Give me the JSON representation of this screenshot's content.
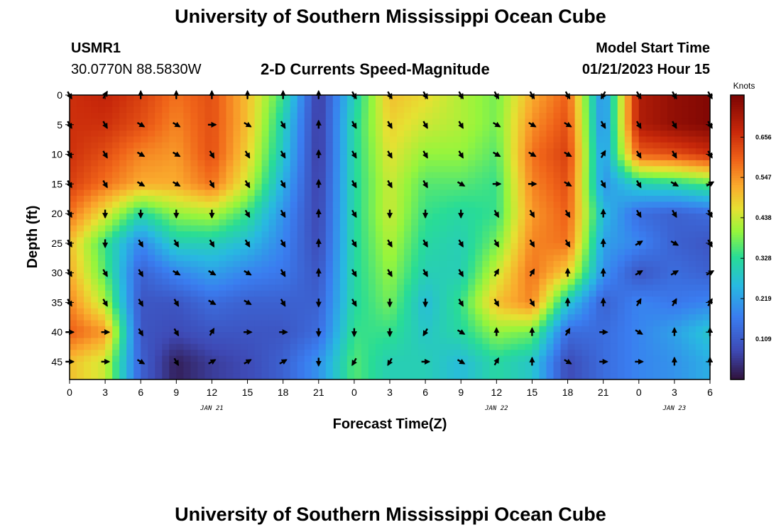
{
  "header": {
    "title": "University of Southern Mississippi Ocean Cube",
    "station": "USMR1",
    "coords": "30.0770N  88.5830W",
    "subtitle": "2-D Currents Speed-Magnitude",
    "model_start_label": "Model Start Time",
    "model_start_value": "01/21/2023 Hour 15"
  },
  "footer": {
    "title": "University of Southern Mississippi Ocean Cube"
  },
  "chart_data": {
    "type": "heatmap",
    "xlabel": "Forecast Time(Z)",
    "ylabel": "Depth (ft)",
    "x_tick_labels": [
      "0",
      "3",
      "6",
      "9",
      "12",
      "15",
      "18",
      "21",
      "0",
      "3",
      "6",
      "9",
      "12",
      "15",
      "18",
      "21",
      "0",
      "3",
      "6"
    ],
    "date_labels": [
      {
        "text": "JAN 21",
        "at_tick": 4
      },
      {
        "text": "JAN 22",
        "at_tick": 12
      },
      {
        "text": "JAN 23",
        "at_tick": 17
      }
    ],
    "y_tick_labels": [
      "0",
      "5",
      "10",
      "15",
      "20",
      "25",
      "30",
      "35",
      "40",
      "45"
    ],
    "y_ticks": [
      0,
      5,
      10,
      15,
      20,
      25,
      30,
      35,
      40,
      45
    ],
    "ylim": [
      0,
      48
    ],
    "ordinal_times": [
      0,
      3,
      6,
      9,
      12,
      15,
      18,
      21,
      24,
      27,
      30,
      33,
      36,
      39,
      42,
      45,
      48,
      51,
      54
    ],
    "depths": [
      0,
      5,
      10,
      15,
      20,
      25,
      30,
      35,
      40,
      45
    ],
    "colorbar": {
      "title": "Knots",
      "labels": [
        "0.656",
        "0.547",
        "0.438",
        "0.328",
        "0.219",
        "0.109"
      ],
      "ticks": [
        0.656,
        0.547,
        0.438,
        0.328,
        0.219,
        0.109
      ],
      "range": [
        0.0,
        0.77
      ]
    },
    "speed_knots": [
      [
        0.66,
        0.68,
        0.64,
        0.58,
        0.62,
        0.5,
        0.34,
        0.05,
        0.3,
        0.5,
        0.47,
        0.42,
        0.38,
        0.52,
        0.6,
        0.18,
        0.7,
        0.74,
        0.76
      ],
      [
        0.66,
        0.66,
        0.62,
        0.56,
        0.62,
        0.5,
        0.3,
        0.05,
        0.32,
        0.48,
        0.44,
        0.42,
        0.38,
        0.55,
        0.62,
        0.18,
        0.7,
        0.74,
        0.76
      ],
      [
        0.66,
        0.62,
        0.56,
        0.54,
        0.62,
        0.48,
        0.28,
        0.05,
        0.32,
        0.46,
        0.4,
        0.4,
        0.36,
        0.58,
        0.64,
        0.2,
        0.6,
        0.62,
        0.66
      ],
      [
        0.64,
        0.58,
        0.52,
        0.52,
        0.58,
        0.44,
        0.24,
        0.06,
        0.32,
        0.44,
        0.36,
        0.36,
        0.34,
        0.56,
        0.62,
        0.2,
        0.3,
        0.32,
        0.36
      ],
      [
        0.58,
        0.46,
        0.32,
        0.4,
        0.42,
        0.34,
        0.2,
        0.07,
        0.32,
        0.44,
        0.34,
        0.32,
        0.34,
        0.54,
        0.6,
        0.26,
        0.14,
        0.12,
        0.14
      ],
      [
        0.5,
        0.34,
        0.18,
        0.3,
        0.3,
        0.26,
        0.18,
        0.08,
        0.32,
        0.42,
        0.32,
        0.3,
        0.38,
        0.56,
        0.58,
        0.22,
        0.18,
        0.12,
        0.1
      ],
      [
        0.52,
        0.36,
        0.12,
        0.18,
        0.22,
        0.18,
        0.16,
        0.1,
        0.32,
        0.4,
        0.3,
        0.3,
        0.44,
        0.58,
        0.48,
        0.2,
        0.1,
        0.14,
        0.12
      ],
      [
        0.56,
        0.42,
        0.1,
        0.1,
        0.14,
        0.12,
        0.12,
        0.12,
        0.32,
        0.38,
        0.26,
        0.34,
        0.5,
        0.56,
        0.28,
        0.12,
        0.18,
        0.16,
        0.18
      ],
      [
        0.6,
        0.54,
        0.1,
        0.08,
        0.1,
        0.1,
        0.1,
        0.14,
        0.34,
        0.34,
        0.28,
        0.32,
        0.4,
        0.38,
        0.14,
        0.14,
        0.18,
        0.22,
        0.28
      ],
      [
        0.5,
        0.44,
        0.12,
        0.02,
        0.06,
        0.08,
        0.12,
        0.2,
        0.36,
        0.3,
        0.3,
        0.26,
        0.32,
        0.28,
        0.08,
        0.14,
        0.18,
        0.2,
        0.24
      ]
    ],
    "direction_deg": [
      [
        150,
        30,
        0,
        0,
        0,
        0,
        0,
        0,
        150,
        150,
        150,
        150,
        150,
        150,
        150,
        210,
        150,
        150,
        150
      ],
      [
        150,
        150,
        120,
        120,
        90,
        120,
        150,
        0,
        150,
        150,
        150,
        150,
        120,
        120,
        120,
        150,
        150,
        150,
        150
      ],
      [
        150,
        150,
        120,
        120,
        150,
        150,
        150,
        0,
        150,
        150,
        150,
        150,
        120,
        120,
        120,
        30,
        150,
        150,
        150
      ],
      [
        150,
        150,
        120,
        120,
        150,
        150,
        150,
        0,
        150,
        150,
        150,
        120,
        90,
        90,
        120,
        150,
        150,
        120,
        60
      ],
      [
        150,
        180,
        180,
        180,
        180,
        150,
        150,
        0,
        150,
        180,
        180,
        180,
        150,
        150,
        150,
        0,
        150,
        150,
        150
      ],
      [
        150,
        180,
        150,
        150,
        150,
        150,
        150,
        0,
        150,
        150,
        150,
        150,
        150,
        150,
        150,
        0,
        60,
        120,
        150
      ],
      [
        150,
        150,
        150,
        120,
        120,
        120,
        150,
        0,
        150,
        150,
        150,
        150,
        30,
        30,
        0,
        0,
        60,
        60,
        60
      ],
      [
        150,
        150,
        150,
        150,
        120,
        120,
        150,
        180,
        150,
        180,
        180,
        150,
        150,
        150,
        0,
        0,
        30,
        30,
        30
      ],
      [
        90,
        90,
        150,
        150,
        30,
        90,
        90,
        180,
        180,
        180,
        210,
        120,
        0,
        0,
        30,
        90,
        120,
        0,
        0
      ],
      [
        90,
        90,
        120,
        150,
        60,
        60,
        60,
        180,
        210,
        210,
        90,
        120,
        30,
        0,
        120,
        90,
        90,
        0,
        0
      ]
    ]
  }
}
